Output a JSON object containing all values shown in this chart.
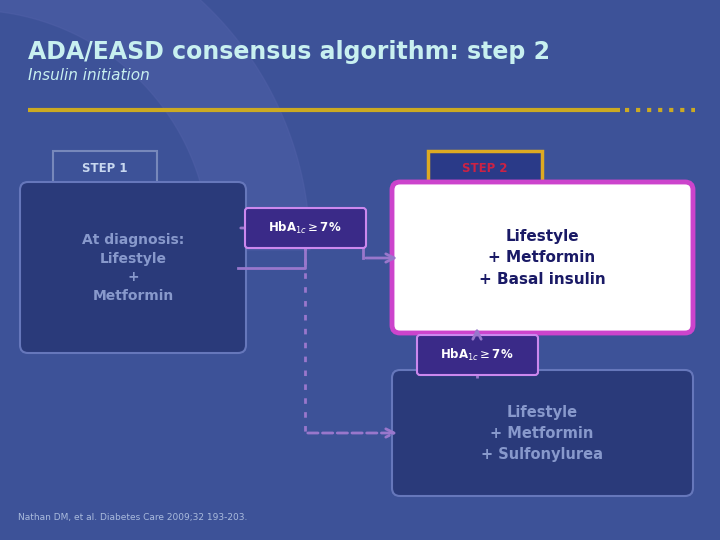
{
  "title": "ADA/EASD consensus algorithm: step 2",
  "subtitle": "Insulin initiation",
  "step1_label": "STEP 1",
  "step2_label": "STEP 2",
  "box1_text": "At diagnosis:\nLifestyle\n+\nMetformin",
  "box2_text": "Lifestyle\n+ Metformin\n+ Basal insulin",
  "box3_text": "Lifestyle\n+ Metformin\n+ Sulfonylurea",
  "hba1c_label": "HbA$_{1c}$$\\geq$7%",
  "citation": "Nathan DM, et al. Diabetes Care 2009;32 193-203.",
  "bg_color": "#3d5298",
  "bg_left_color": "#4a5faa",
  "title_color": "#c8f0f0",
  "subtitle_color": "#c8f0f0",
  "gold_color": "#ccaa22",
  "step1_box_edge": "#7788bb",
  "step1_box_face": "#3d5298",
  "step1_text_color": "#c8d8f0",
  "step2_box_edge": "#ddaa22",
  "step2_box_face": "#2a3a88",
  "step2_text_color": "#cc2244",
  "box1_edge": "#6677bb",
  "box1_face": "#2a3a7a",
  "box1_text_color": "#8899cc",
  "hba1c_edge": "#cc88ee",
  "hba1c_face": "#3a2a88",
  "hba1c_text_color": "#ffffff",
  "box2_edge": "#cc44cc",
  "box2_face": "#ffffff",
  "box2_text_color": "#1a1a66",
  "box3_edge": "#6677bb",
  "box3_face": "#2a3a7a",
  "box3_text_color": "#8899cc",
  "arrow_color": "#9977cc",
  "dotted_arrow_color": "#9977cc"
}
